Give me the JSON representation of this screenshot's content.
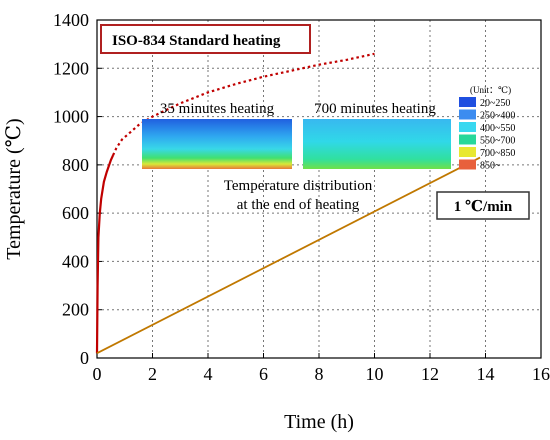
{
  "chart_data": {
    "type": "line",
    "xlabel": "Time (h)",
    "ylabel": "Temperature (℃)",
    "xlim": [
      0,
      16
    ],
    "ylim": [
      0,
      1400
    ],
    "x_ticks": [
      "0",
      "2",
      "4",
      "6",
      "8",
      "10",
      "12",
      "14",
      "16"
    ],
    "y_ticks": [
      "0",
      "200",
      "400",
      "600",
      "800",
      "1000",
      "1200",
      "1400"
    ],
    "grid": "dotted",
    "series": [
      {
        "name": "ISO-834 Standard heating",
        "color": "#c00000",
        "x": [
          0,
          0.02,
          0.05,
          0.1,
          0.15,
          0.25,
          0.35,
          0.5,
          0.58,
          0.7,
          0.9,
          1.2,
          1.5,
          2,
          3,
          4,
          5,
          6,
          7,
          8,
          9,
          10
        ],
        "y": [
          20,
          300,
          500,
          600,
          660,
          730,
          770,
          820,
          840,
          870,
          905,
          935,
          965,
          1000,
          1055,
          1100,
          1135,
          1165,
          1190,
          1215,
          1235,
          1260
        ],
        "solid_until_x": 0.58
      },
      {
        "name": "1 ℃/min",
        "color": "#c07800",
        "x": [
          0,
          13.8
        ],
        "y": [
          20,
          830
        ]
      }
    ],
    "annotations": {
      "standard_label": "ISO-834 Standard heating",
      "rate_label": "1 ℃/min",
      "inset_35_title": "35 minutes heating",
      "inset_700_title": "700 minutes heating",
      "inset_caption_line1": "Temperature distribution",
      "inset_caption_line2": "at the end of heating"
    },
    "legend": {
      "title": "(Unit：℃)",
      "placement": "top-right",
      "items": [
        {
          "label": "20~250",
          "color": "#1f4fe0"
        },
        {
          "label": "250~400",
          "color": "#3c8cf0"
        },
        {
          "label": "400~550",
          "color": "#38d8f0"
        },
        {
          "label": "550~700",
          "color": "#28d89a"
        },
        {
          "label": "700~850",
          "color": "#e8e830"
        },
        {
          "label": "850~",
          "color": "#e8603c"
        }
      ]
    }
  }
}
